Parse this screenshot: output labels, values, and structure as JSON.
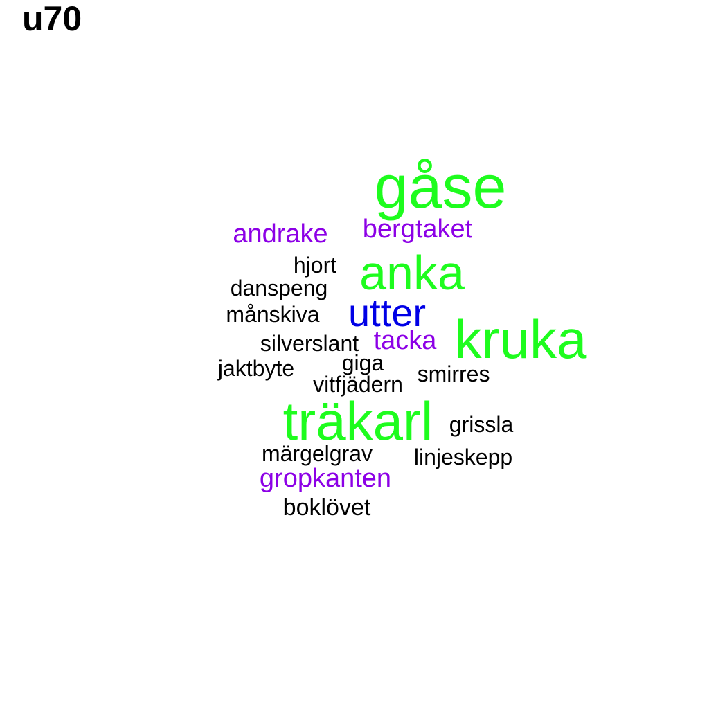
{
  "title": "u70",
  "colors": {
    "green": "#1efc1e",
    "blue": "#0000e6",
    "purple": "#8c00e6",
    "black": "#000000"
  },
  "words": [
    {
      "text": "gåse",
      "color": "green"
    },
    {
      "text": "andrake",
      "color": "purple"
    },
    {
      "text": "bergtaket",
      "color": "purple"
    },
    {
      "text": "hjort",
      "color": "black"
    },
    {
      "text": "anka",
      "color": "green"
    },
    {
      "text": "danspeng",
      "color": "black"
    },
    {
      "text": "månskiva",
      "color": "black"
    },
    {
      "text": "utter",
      "color": "blue"
    },
    {
      "text": "kruka",
      "color": "green"
    },
    {
      "text": "silverslant",
      "color": "black"
    },
    {
      "text": "tacka",
      "color": "purple"
    },
    {
      "text": "giga",
      "color": "black"
    },
    {
      "text": "jaktbyte",
      "color": "black"
    },
    {
      "text": "smirres",
      "color": "black"
    },
    {
      "text": "vitfjädern",
      "color": "black"
    },
    {
      "text": "träkarl",
      "color": "green"
    },
    {
      "text": "grissla",
      "color": "black"
    },
    {
      "text": "märgelgrav",
      "color": "black"
    },
    {
      "text": "linjeskepp",
      "color": "black"
    },
    {
      "text": "gropkanten",
      "color": "purple"
    },
    {
      "text": "boklövet",
      "color": "black"
    }
  ]
}
